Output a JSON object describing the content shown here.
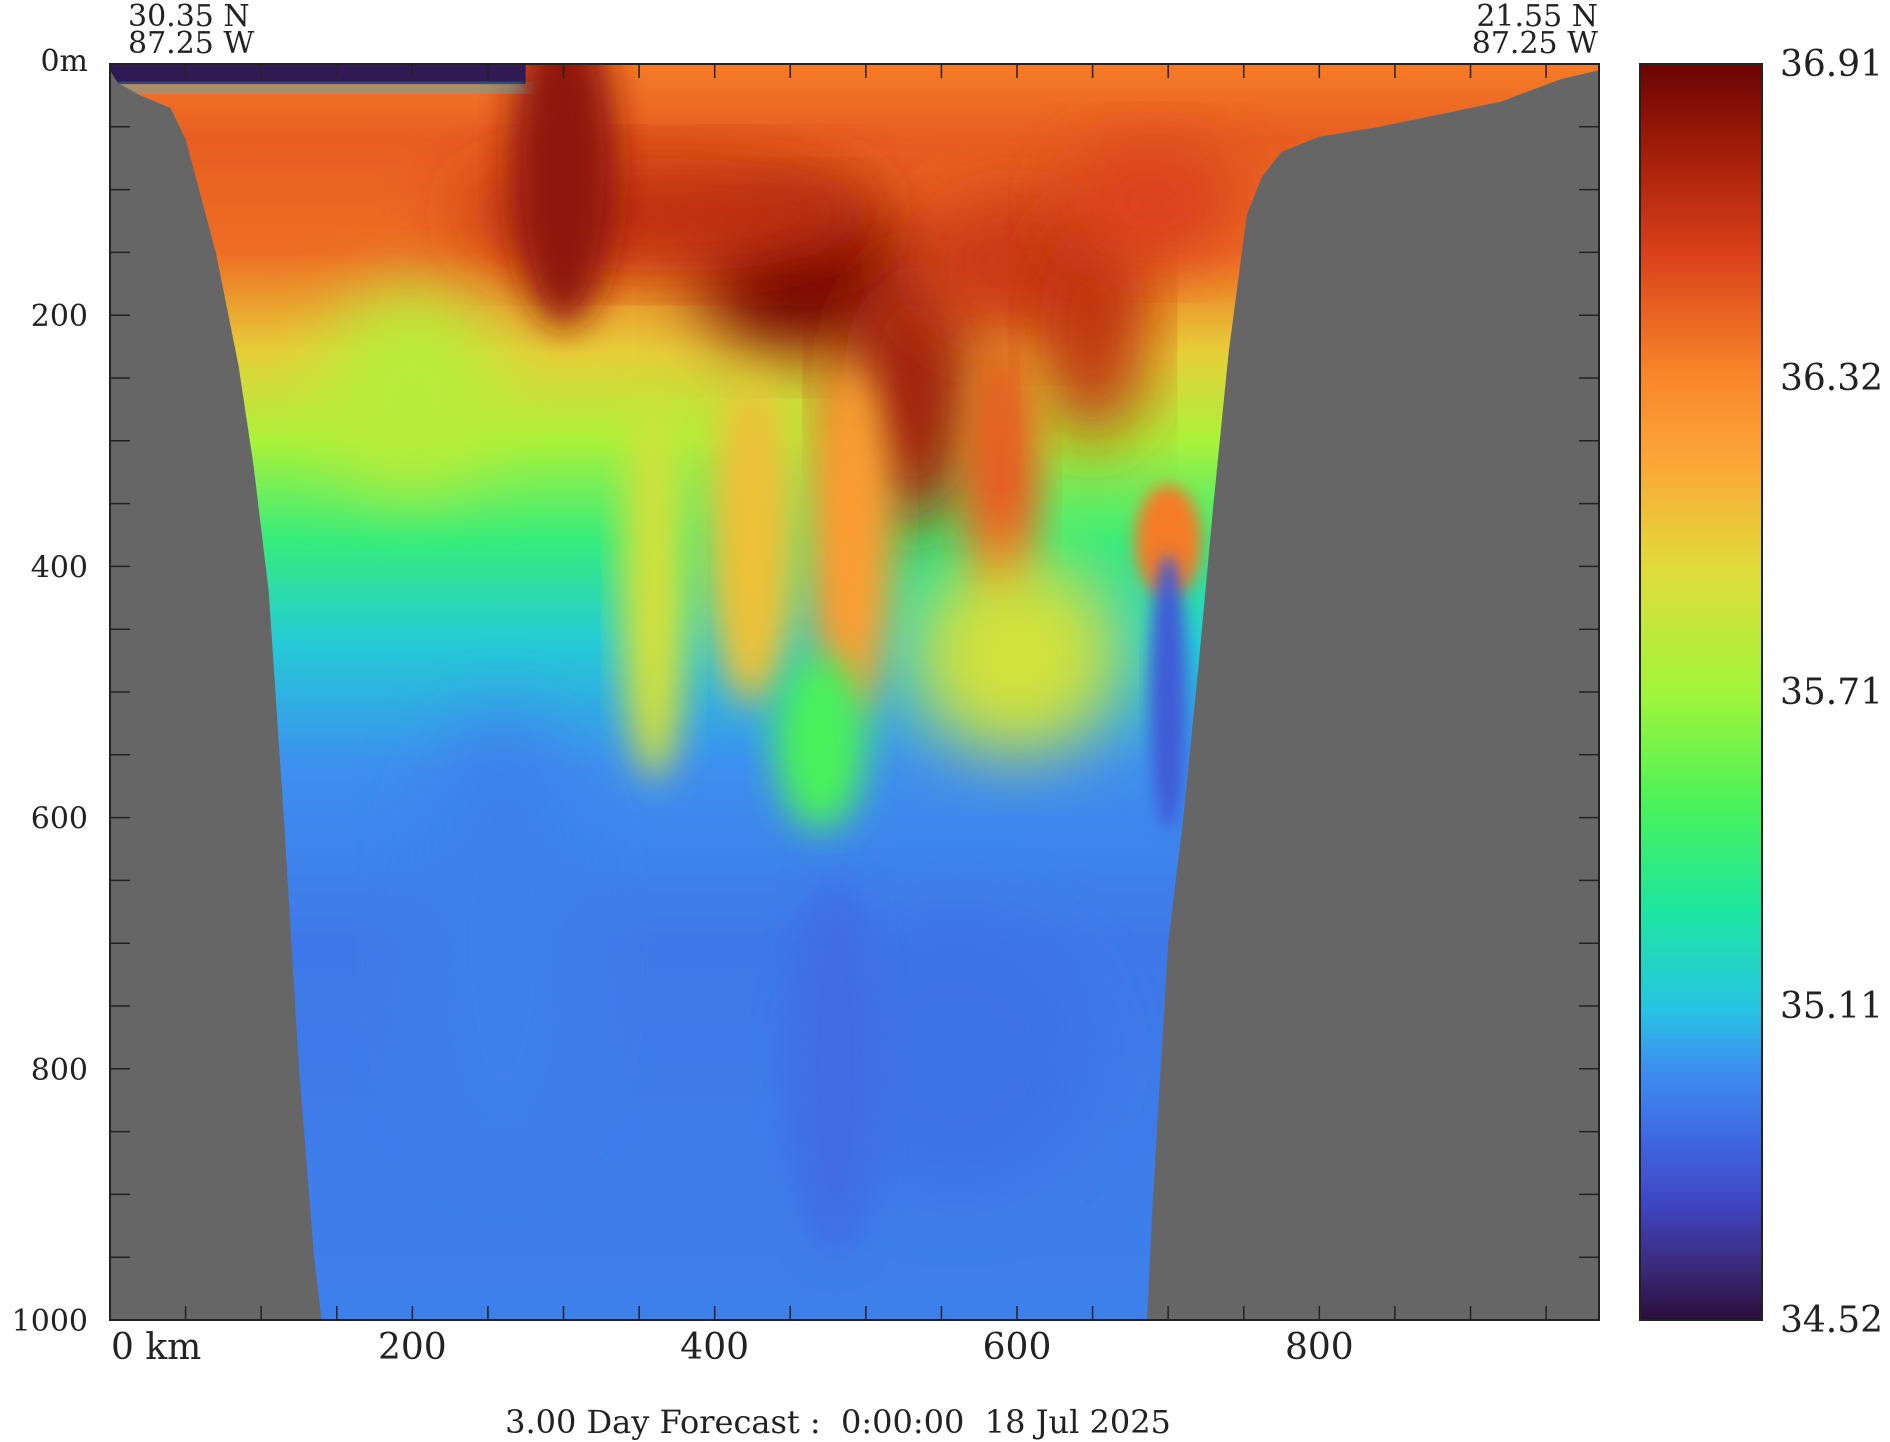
{
  "chart_data": {
    "type": "heatmap",
    "title": "",
    "start_point": {
      "lat": "30.35 N",
      "lon": "87.25 W"
    },
    "end_point": {
      "lat": "21.55 N",
      "lon": "87.25 W"
    },
    "footer": "3.00 Day Forecast :  0:00:00  18 Jul 2025",
    "x_axis": {
      "range": [
        0,
        985
      ],
      "tick_labels": [
        {
          "value": 0,
          "label": "0 km"
        },
        {
          "value": 200,
          "label": "200"
        },
        {
          "value": 400,
          "label": "400"
        },
        {
          "value": 600,
          "label": "600"
        },
        {
          "value": 800,
          "label": "800"
        }
      ],
      "minor_step": 50
    },
    "y_axis": {
      "range": [
        0,
        1000
      ],
      "inverted": true,
      "tick_labels": [
        {
          "value": 0,
          "label": "0m"
        },
        {
          "value": 200,
          "label": "200"
        },
        {
          "value": 400,
          "label": "400"
        },
        {
          "value": 600,
          "label": "600"
        },
        {
          "value": 800,
          "label": "800"
        },
        {
          "value": 1000,
          "label": "1000"
        }
      ],
      "minor_step": 50
    },
    "colorbar": {
      "range": [
        34.52,
        36.91
      ],
      "tick_labels": [
        "36.91",
        "36.32",
        "35.71",
        "35.11",
        "34.52"
      ],
      "stops": [
        {
          "v": 34.52,
          "color": "#2a0e3a"
        },
        {
          "v": 34.62,
          "color": "#3b2a7a"
        },
        {
          "v": 34.74,
          "color": "#4045c2"
        },
        {
          "v": 34.86,
          "color": "#3f66e2"
        },
        {
          "v": 35.0,
          "color": "#3d8ff0"
        },
        {
          "v": 35.11,
          "color": "#27c4e4"
        },
        {
          "v": 35.3,
          "color": "#1ee6a0"
        },
        {
          "v": 35.5,
          "color": "#4af25a"
        },
        {
          "v": 35.71,
          "color": "#a0f53a"
        },
        {
          "v": 35.95,
          "color": "#e0dc3a"
        },
        {
          "v": 36.15,
          "color": "#fca637"
        },
        {
          "v": 36.32,
          "color": "#f9852a"
        },
        {
          "v": 36.55,
          "color": "#d9401a"
        },
        {
          "v": 36.75,
          "color": "#a11c08"
        },
        {
          "v": 36.91,
          "color": "#6a0404"
        }
      ]
    },
    "land_color": "#666666",
    "bathymetry": {
      "x_km": [
        0,
        5,
        20,
        40,
        50,
        70,
        85,
        95,
        105,
        115,
        125,
        135,
        140,
        686,
        690,
        700,
        710,
        720,
        730,
        740,
        752,
        762,
        775,
        800,
        840,
        880,
        920,
        960,
        985
      ],
      "depth_m": [
        5,
        15,
        25,
        35,
        60,
        150,
        240,
        320,
        420,
        600,
        800,
        950,
        1000,
        1000,
        900,
        700,
        600,
        480,
        350,
        230,
        120,
        90,
        70,
        58,
        50,
        40,
        30,
        12,
        5
      ]
    },
    "features": [
      {
        "name": "surface fresh plume",
        "x_range": [
          0,
          275
        ],
        "depth_range": [
          0,
          22
        ],
        "value": 34.6
      },
      {
        "name": "high-salinity core",
        "x_center": 460,
        "depth_center": 190,
        "value": 36.9
      },
      {
        "name": "low-salinity filament",
        "x_center": 705,
        "depth_center": 480,
        "value": 34.8
      },
      {
        "name": "deep water",
        "depth_range": [
          600,
          1000
        ],
        "value": 34.95
      }
    ]
  }
}
